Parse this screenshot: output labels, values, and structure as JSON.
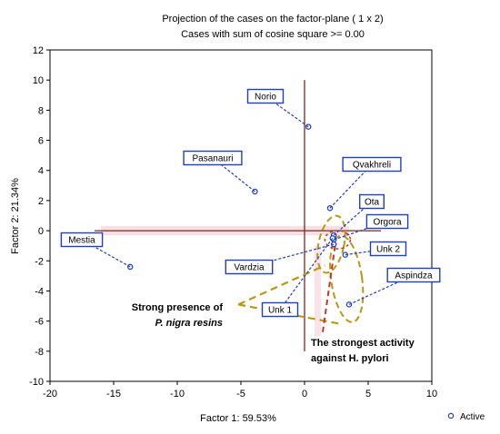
{
  "chart_data": {
    "type": "scatter",
    "title": "Projection of the cases on the factor-plane (  1 x   2)",
    "subtitle": "Cases with sum of cosine square >=  0.00",
    "xlabel": "Factor 1: 59.53%",
    "ylabel": "Factor 2: 21.34%",
    "xlim": [
      -20,
      10
    ],
    "ylim": [
      -10,
      12
    ],
    "xticks": [
      -20,
      -15,
      -10,
      -5,
      0,
      5,
      10
    ],
    "yticks": [
      -10,
      -8,
      -6,
      -4,
      -2,
      0,
      2,
      4,
      6,
      8,
      10,
      12
    ],
    "grid": false,
    "legend": {
      "position": "bottom-right",
      "entries": [
        "Active"
      ]
    },
    "series": [
      {
        "name": "Active",
        "points": [
          {
            "label": "Norio",
            "x": 0.3,
            "y": 6.9
          },
          {
            "label": "Pasanauri",
            "x": -3.9,
            "y": 2.6
          },
          {
            "label": "Mestia",
            "x": -13.7,
            "y": -2.4
          },
          {
            "label": "Qvakhreli",
            "x": 2.0,
            "y": 1.5
          },
          {
            "label": "Ota",
            "x": 2.3,
            "y": -0.3
          },
          {
            "label": "Orgora",
            "x": 2.3,
            "y": -0.6
          },
          {
            "label": "Unk 2",
            "x": 3.2,
            "y": -1.6
          },
          {
            "label": "Vardzia",
            "x": 2.3,
            "y": -0.9
          },
          {
            "label": "Unk 1",
            "x": 2.2,
            "y": -0.5
          },
          {
            "label": "Aspindza",
            "x": 3.5,
            "y": -4.9
          }
        ]
      }
    ],
    "annotations": {
      "resins_line1": "Strong presence of",
      "resins_line2": "P. nigra resins",
      "activity_line1": "The strongest activity",
      "activity_line2": "against H. pylori"
    },
    "colors": {
      "points": "#1f3fbf",
      "label_border": "#1f3fbf",
      "zero_lines": "#7b2a1c",
      "highlight": "#f2b6c4",
      "olive": "#b59a1a",
      "red": "#c0392b"
    }
  }
}
